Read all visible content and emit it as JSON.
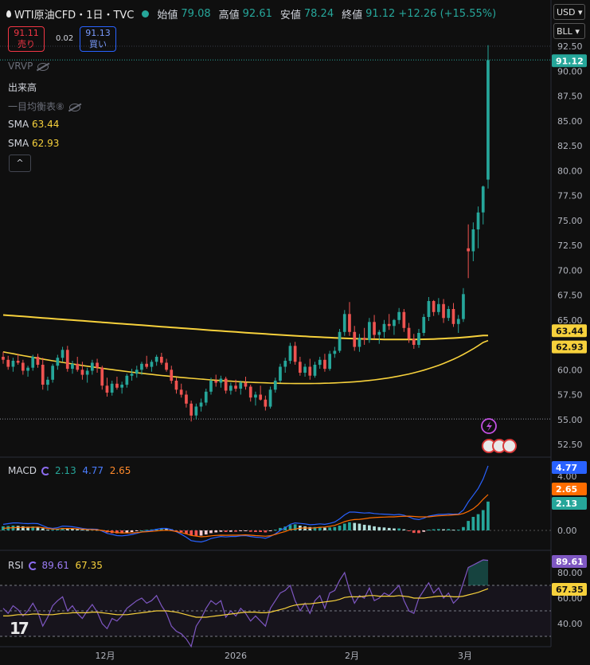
{
  "header": {
    "symbol": "WTI原油CFD・1日・TVC",
    "open_label": "始値",
    "open": "79.08",
    "high_label": "高値",
    "high": "92.61",
    "low_label": "安値",
    "low": "78.24",
    "close_label": "終値",
    "close": "91.12",
    "change": "+12.26 (+15.55%)"
  },
  "trade": {
    "sell_price": "91.11",
    "sell_label": "売り",
    "spread": "0.02",
    "buy_price": "91.13",
    "buy_label": "買い"
  },
  "indicators": {
    "vrvp": "VRVP",
    "volume": "出来高",
    "ichimoku": "一目均衡表⑧",
    "sma1_label": "SMA",
    "sma1_value": "63.44",
    "sma2_label": "SMA",
    "sma2_value": "62.93",
    "collapse": "^"
  },
  "toolbar": {
    "currency": "USD",
    "unit": "BLL"
  },
  "macd": {
    "label": "MACD",
    "hist": "2.13",
    "macd": "4.77",
    "signal": "2.65",
    "ticks": [
      "4.00",
      "2.00",
      "0.00"
    ]
  },
  "rsi": {
    "label": "RSI",
    "rsi": "89.61",
    "ma": "67.35",
    "ticks": [
      "80.00",
      "60.00",
      "40.00"
    ]
  },
  "chart_data": {
    "type": "candlestick",
    "price_ticks": [
      "92.50",
      "90.00",
      "87.50",
      "85.00",
      "82.50",
      "80.00",
      "77.50",
      "75.00",
      "72.50",
      "70.00",
      "67.50",
      "65.00",
      "62.50",
      "60.00",
      "57.50",
      "55.00",
      "52.50"
    ],
    "x_ticks": [
      "12月",
      "2026",
      "2月",
      "3月"
    ],
    "last_price": "91.12",
    "sma1_last": "63.44",
    "sma2_last": "62.93",
    "ohlc": [
      [
        61.3,
        61.8,
        60.6,
        61.0
      ],
      [
        61.0,
        61.4,
        60.0,
        60.3
      ],
      [
        60.3,
        61.2,
        59.8,
        60.9
      ],
      [
        60.9,
        61.6,
        60.5,
        60.7
      ],
      [
        60.7,
        61.0,
        59.5,
        59.9
      ],
      [
        59.9,
        60.4,
        59.3,
        60.2
      ],
      [
        60.2,
        61.5,
        59.9,
        61.3
      ],
      [
        61.3,
        61.6,
        60.2,
        60.5
      ],
      [
        60.5,
        61.2,
        58.0,
        58.5
      ],
      [
        58.5,
        59.3,
        57.9,
        59.0
      ],
      [
        59.0,
        60.6,
        58.7,
        60.4
      ],
      [
        60.4,
        61.5,
        60.0,
        61.2
      ],
      [
        61.2,
        62.3,
        60.8,
        62.0
      ],
      [
        62.0,
        62.4,
        59.8,
        60.1
      ],
      [
        60.1,
        60.9,
        59.6,
        60.6
      ],
      [
        60.6,
        61.3,
        59.8,
        60.0
      ],
      [
        60.0,
        60.8,
        59.0,
        59.5
      ],
      [
        59.5,
        60.2,
        58.7,
        59.9
      ],
      [
        59.9,
        61.0,
        59.5,
        60.7
      ],
      [
        60.7,
        61.1,
        59.7,
        60.2
      ],
      [
        60.2,
        60.4,
        58.0,
        58.4
      ],
      [
        58.4,
        59.2,
        57.3,
        57.7
      ],
      [
        57.7,
        58.9,
        57.4,
        58.6
      ],
      [
        58.6,
        59.3,
        58.0,
        58.2
      ],
      [
        58.2,
        58.8,
        57.6,
        58.5
      ],
      [
        58.5,
        59.6,
        58.2,
        59.4
      ],
      [
        59.4,
        60.1,
        58.9,
        59.6
      ],
      [
        59.6,
        60.4,
        59.2,
        60.0
      ],
      [
        60.0,
        60.8,
        59.5,
        60.6
      ],
      [
        60.6,
        61.4,
        60.1,
        60.3
      ],
      [
        60.3,
        61.0,
        59.8,
        60.8
      ],
      [
        60.8,
        61.5,
        60.4,
        61.3
      ],
      [
        61.3,
        61.7,
        60.5,
        60.7
      ],
      [
        60.7,
        61.1,
        59.8,
        60.0
      ],
      [
        60.0,
        60.4,
        58.6,
        58.9
      ],
      [
        58.9,
        59.2,
        57.6,
        58.0
      ],
      [
        58.0,
        58.6,
        57.2,
        57.5
      ],
      [
        57.5,
        57.9,
        56.2,
        56.6
      ],
      [
        56.6,
        56.9,
        54.8,
        55.4
      ],
      [
        55.4,
        56.6,
        55.0,
        56.3
      ],
      [
        56.3,
        57.1,
        55.8,
        56.7
      ],
      [
        56.7,
        58.1,
        56.4,
        57.8
      ],
      [
        57.8,
        59.2,
        57.5,
        58.9
      ],
      [
        58.9,
        59.5,
        58.3,
        58.7
      ],
      [
        58.7,
        59.4,
        58.2,
        59.1
      ],
      [
        59.1,
        59.3,
        57.6,
        57.9
      ],
      [
        57.9,
        58.7,
        57.5,
        58.4
      ],
      [
        58.4,
        59.0,
        57.8,
        58.1
      ],
      [
        58.1,
        58.9,
        57.5,
        58.7
      ],
      [
        58.7,
        59.3,
        58.0,
        58.3
      ],
      [
        58.3,
        58.5,
        56.8,
        57.2
      ],
      [
        57.2,
        57.8,
        56.4,
        57.5
      ],
      [
        57.5,
        58.4,
        56.9,
        57.0
      ],
      [
        57.0,
        57.4,
        55.9,
        56.3
      ],
      [
        56.3,
        58.3,
        56.1,
        58.0
      ],
      [
        58.0,
        59.2,
        57.7,
        58.9
      ],
      [
        58.9,
        60.6,
        58.7,
        60.3
      ],
      [
        60.3,
        61.2,
        59.7,
        60.9
      ],
      [
        60.9,
        62.7,
        60.6,
        62.4
      ],
      [
        62.4,
        62.8,
        60.5,
        60.8
      ],
      [
        60.8,
        61.3,
        59.4,
        59.7
      ],
      [
        59.7,
        60.6,
        59.3,
        60.3
      ],
      [
        60.3,
        61.1,
        59.0,
        59.4
      ],
      [
        59.4,
        60.8,
        59.2,
        60.5
      ],
      [
        60.5,
        61.3,
        60.1,
        61.0
      ],
      [
        61.0,
        61.6,
        59.8,
        60.1
      ],
      [
        60.1,
        61.9,
        59.9,
        61.6
      ],
      [
        61.6,
        62.3,
        61.2,
        61.9
      ],
      [
        61.9,
        64.1,
        61.7,
        63.8
      ],
      [
        63.8,
        66.0,
        63.4,
        65.6
      ],
      [
        65.6,
        66.8,
        63.4,
        63.8
      ],
      [
        63.8,
        64.4,
        61.9,
        62.3
      ],
      [
        62.3,
        63.6,
        61.8,
        63.2
      ],
      [
        63.2,
        64.2,
        62.5,
        63.0
      ],
      [
        63.0,
        65.2,
        62.7,
        64.8
      ],
      [
        64.8,
        65.5,
        63.1,
        63.5
      ],
      [
        63.5,
        64.0,
        62.6,
        63.8
      ],
      [
        63.8,
        65.0,
        63.2,
        64.6
      ],
      [
        64.6,
        65.6,
        64.0,
        64.4
      ],
      [
        64.4,
        65.1,
        63.5,
        65.0
      ],
      [
        65.0,
        66.2,
        64.6,
        65.8
      ],
      [
        65.8,
        66.1,
        63.8,
        64.2
      ],
      [
        64.2,
        64.7,
        62.7,
        63.1
      ],
      [
        63.1,
        63.6,
        62.1,
        62.5
      ],
      [
        62.5,
        64.1,
        62.2,
        63.7
      ],
      [
        63.7,
        65.6,
        63.4,
        65.3
      ],
      [
        65.3,
        67.3,
        64.9,
        66.9
      ],
      [
        66.9,
        67.0,
        65.4,
        65.8
      ],
      [
        65.8,
        67.2,
        65.5,
        66.6
      ],
      [
        66.6,
        67.1,
        64.7,
        65.2
      ],
      [
        65.2,
        66.4,
        64.9,
        66.1
      ],
      [
        66.1,
        66.7,
        64.3,
        64.6
      ],
      [
        64.6,
        65.5,
        63.7,
        65.1
      ],
      [
        65.1,
        68.2,
        64.8,
        67.6
      ],
      [
        72.2,
        74.6,
        69.2,
        71.9
      ],
      [
        71.9,
        74.8,
        70.9,
        74.1
      ],
      [
        74.1,
        76.4,
        72.2,
        75.8
      ],
      [
        75.8,
        78.5,
        74.6,
        78.4
      ],
      [
        79.1,
        92.6,
        78.2,
        91.1
      ]
    ],
    "macd_hist": [
      0.3,
      0.32,
      0.35,
      0.33,
      0.3,
      0.27,
      0.29,
      0.25,
      0.15,
      0.05,
      0.05,
      0.1,
      0.18,
      0.16,
      0.13,
      0.1,
      0.05,
      0.03,
      0.05,
      0.04,
      -0.05,
      -0.15,
      -0.2,
      -0.22,
      -0.22,
      -0.18,
      -0.12,
      -0.06,
      0.0,
      0.04,
      0.07,
      0.12,
      0.15,
      0.14,
      0.08,
      -0.02,
      -0.12,
      -0.25,
      -0.38,
      -0.4,
      -0.38,
      -0.3,
      -0.2,
      -0.15,
      -0.1,
      -0.12,
      -0.1,
      -0.1,
      -0.06,
      -0.05,
      -0.1,
      -0.12,
      -0.12,
      -0.15,
      -0.06,
      0.05,
      0.18,
      0.28,
      0.4,
      0.45,
      0.35,
      0.3,
      0.25,
      0.25,
      0.25,
      0.2,
      0.22,
      0.25,
      0.35,
      0.5,
      0.6,
      0.55,
      0.5,
      0.42,
      0.38,
      0.3,
      0.25,
      0.22,
      0.18,
      0.15,
      0.15,
      0.08,
      -0.05,
      -0.18,
      -0.2,
      -0.1,
      0.05,
      0.08,
      0.1,
      0.08,
      0.1,
      0.05,
      0.05,
      0.25,
      0.7,
      1.0,
      1.2,
      1.5,
      2.13
    ],
    "macd_line": [
      0.45,
      0.5,
      0.55,
      0.55,
      0.52,
      0.5,
      0.52,
      0.5,
      0.35,
      0.2,
      0.15,
      0.2,
      0.32,
      0.3,
      0.27,
      0.22,
      0.15,
      0.1,
      0.1,
      0.08,
      -0.05,
      -0.22,
      -0.3,
      -0.38,
      -0.4,
      -0.36,
      -0.3,
      -0.22,
      -0.12,
      -0.06,
      0.0,
      0.08,
      0.15,
      0.15,
      0.06,
      -0.1,
      -0.28,
      -0.5,
      -0.75,
      -0.82,
      -0.85,
      -0.75,
      -0.6,
      -0.52,
      -0.45,
      -0.48,
      -0.45,
      -0.45,
      -0.4,
      -0.38,
      -0.45,
      -0.5,
      -0.52,
      -0.58,
      -0.45,
      -0.25,
      0.0,
      0.2,
      0.45,
      0.55,
      0.52,
      0.48,
      0.42,
      0.44,
      0.48,
      0.45,
      0.52,
      0.62,
      0.85,
      1.15,
      1.35,
      1.35,
      1.32,
      1.28,
      1.3,
      1.25,
      1.22,
      1.2,
      1.18,
      1.15,
      1.18,
      1.12,
      1.0,
      0.85,
      0.8,
      0.9,
      1.05,
      1.12,
      1.18,
      1.18,
      1.22,
      1.2,
      1.22,
      1.5,
      2.1,
      2.6,
      3.1,
      3.8,
      4.77
    ],
    "macd_signal": [
      0.15,
      0.18,
      0.2,
      0.22,
      0.22,
      0.23,
      0.23,
      0.25,
      0.2,
      0.15,
      0.1,
      0.1,
      0.14,
      0.14,
      0.14,
      0.12,
      0.1,
      0.07,
      0.05,
      0.04,
      0.0,
      -0.07,
      -0.1,
      -0.16,
      -0.18,
      -0.18,
      -0.18,
      -0.16,
      -0.12,
      -0.1,
      -0.07,
      -0.04,
      0.0,
      0.01,
      -0.02,
      -0.08,
      -0.16,
      -0.25,
      -0.37,
      -0.42,
      -0.47,
      -0.45,
      -0.4,
      -0.37,
      -0.35,
      -0.36,
      -0.35,
      -0.35,
      -0.34,
      -0.33,
      -0.35,
      -0.38,
      -0.4,
      -0.43,
      -0.39,
      -0.3,
      -0.18,
      -0.08,
      0.05,
      0.1,
      0.17,
      0.18,
      0.17,
      0.19,
      0.23,
      0.25,
      0.3,
      0.37,
      0.5,
      0.65,
      0.75,
      0.8,
      0.82,
      0.86,
      0.92,
      0.95,
      0.97,
      0.98,
      1.0,
      1.0,
      1.03,
      1.04,
      1.05,
      1.03,
      1.0,
      1.0,
      1.0,
      1.04,
      1.08,
      1.1,
      1.12,
      1.15,
      1.17,
      1.25,
      1.4,
      1.6,
      1.9,
      2.3,
      2.65
    ],
    "rsi": [
      52,
      48,
      54,
      51,
      46,
      50,
      56,
      49,
      38,
      45,
      54,
      58,
      61,
      50,
      54,
      48,
      44,
      50,
      55,
      49,
      40,
      36,
      44,
      42,
      46,
      52,
      55,
      58,
      60,
      56,
      58,
      62,
      54,
      48,
      38,
      34,
      32,
      28,
      22,
      38,
      44,
      52,
      58,
      55,
      58,
      45,
      50,
      46,
      52,
      48,
      42,
      46,
      42,
      38,
      52,
      58,
      64,
      66,
      70,
      58,
      50,
      56,
      48,
      58,
      62,
      52,
      64,
      66,
      74,
      80,
      66,
      56,
      62,
      60,
      68,
      58,
      60,
      64,
      62,
      66,
      70,
      58,
      50,
      48,
      60,
      66,
      72,
      64,
      68,
      60,
      64,
      56,
      60,
      72,
      84,
      86,
      88,
      90,
      89.61
    ],
    "rsi_ma": [
      46,
      46,
      46.5,
      47,
      47,
      47,
      47.5,
      47.5,
      47,
      47,
      47,
      47.5,
      48,
      48,
      48.5,
      48.5,
      48.5,
      48.5,
      49,
      49,
      48.5,
      48,
      47.5,
      47,
      47,
      47,
      47.5,
      48,
      48.5,
      49,
      49.5,
      50,
      50,
      50,
      49.5,
      49,
      48,
      47,
      46,
      45,
      45,
      45,
      45.5,
      46,
      46.5,
      47,
      47.5,
      48,
      48.5,
      49,
      49,
      49,
      48.5,
      48.5,
      49,
      50,
      51,
      52,
      53.5,
      54.5,
      55,
      55.5,
      55.5,
      56,
      56.5,
      57,
      57.5,
      58,
      59,
      60.5,
      61,
      61,
      61,
      61.5,
      62,
      62,
      61.5,
      61.5,
      61.5,
      61.5,
      62,
      61.5,
      61,
      60,
      60,
      60,
      60.5,
      61,
      61.5,
      61.5,
      61.5,
      61,
      61,
      61.5,
      62.5,
      63.5,
      64.5,
      66,
      67.35
    ],
    "sma_long": {
      "start": 65.5,
      "end": 63.44
    },
    "sma_short_last": 62.93
  }
}
